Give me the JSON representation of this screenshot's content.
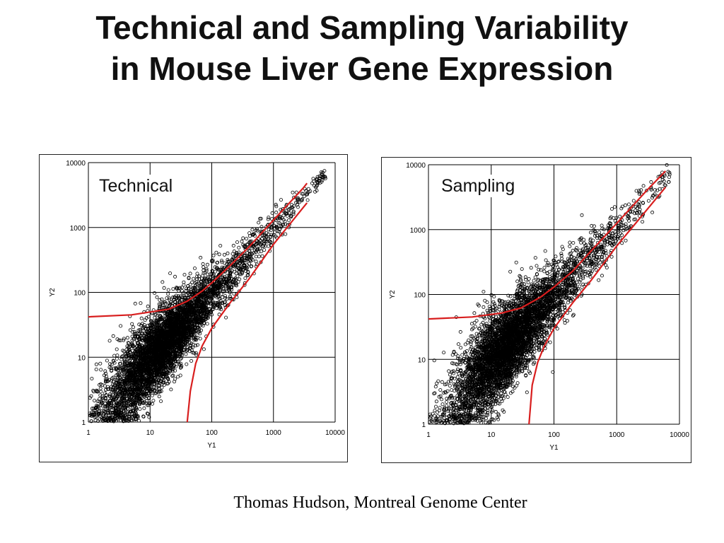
{
  "slide": {
    "title_line1": "Technical and Sampling Variability",
    "title_line2": "in Mouse Liver Gene Expression",
    "credit": "Thomas Hudson, Montreal Genome Center"
  },
  "colors": {
    "curve": "#d81e1e",
    "points": "#000000",
    "grid": "#000000",
    "frame": "#222222"
  },
  "chart_data": [
    {
      "type": "scatter",
      "title": "Technical",
      "xlabel": "Y1",
      "ylabel": "Y2",
      "x_scale": "log",
      "y_scale": "log",
      "xlim": [
        1,
        10000
      ],
      "ylim": [
        1,
        10000
      ],
      "x_ticks": [
        "1",
        "10",
        "100",
        "1000",
        "10000"
      ],
      "y_ticks": [
        "1",
        "10",
        "100",
        "1000",
        "10000"
      ],
      "grid": true,
      "marker": "open-circle",
      "point_count_approx": 5000,
      "point_cloud": {
        "center_log": [
          1.1,
          1.05
        ],
        "spread_low_end_log": 0.35,
        "spread_high_end_log": 0.05,
        "x_range": [
          1,
          7000
        ]
      },
      "series": [
        {
          "name": "upper bound",
          "points": [
            [
              1,
              42
            ],
            [
              5,
              45
            ],
            [
              20,
              55
            ],
            [
              40,
              73
            ],
            [
              70,
              105
            ],
            [
              100,
              140
            ],
            [
              200,
              260
            ],
            [
              400,
              500
            ],
            [
              1000,
              1300
            ],
            [
              3000,
              4000
            ],
            [
              3500,
              4800
            ]
          ]
        },
        {
          "name": "lower bound",
          "points": [
            [
              40,
              1
            ],
            [
              45,
              3
            ],
            [
              55,
              8
            ],
            [
              70,
              15
            ],
            [
              100,
              28
            ],
            [
              200,
              70
            ],
            [
              400,
              160
            ],
            [
              1000,
              550
            ],
            [
              3000,
              2000
            ],
            [
              3500,
              2400
            ]
          ]
        }
      ]
    },
    {
      "type": "scatter",
      "title": "Sampling",
      "xlabel": "Y1",
      "ylabel": "Y2",
      "x_scale": "log",
      "y_scale": "log",
      "xlim": [
        1,
        10000
      ],
      "ylim": [
        1,
        10000
      ],
      "x_ticks": [
        "1",
        "10",
        "100",
        "1000",
        "10000"
      ],
      "y_ticks": [
        "1",
        "10",
        "100",
        "1000",
        "10000"
      ],
      "grid": true,
      "marker": "open-circle",
      "point_count_approx": 5000,
      "point_cloud": {
        "center_log": [
          1.15,
          1.1
        ],
        "spread_low_end_log": 0.4,
        "spread_high_end_log": 0.09,
        "x_range": [
          1,
          7000
        ]
      },
      "series": [
        {
          "name": "upper bound",
          "points": [
            [
              1,
              42
            ],
            [
              5,
              45
            ],
            [
              15,
              52
            ],
            [
              30,
              62
            ],
            [
              60,
              90
            ],
            [
              100,
              130
            ],
            [
              200,
              230
            ],
            [
              400,
              480
            ],
            [
              1000,
              1250
            ],
            [
              3000,
              4000
            ],
            [
              6000,
              8000
            ]
          ]
        },
        {
          "name": "lower bound",
          "points": [
            [
              40,
              1
            ],
            [
              45,
              4
            ],
            [
              55,
              9
            ],
            [
              70,
              16
            ],
            [
              100,
              30
            ],
            [
              200,
              75
            ],
            [
              400,
              170
            ],
            [
              1000,
              560
            ],
            [
              3000,
              2000
            ],
            [
              6000,
              4500
            ]
          ]
        }
      ]
    }
  ]
}
